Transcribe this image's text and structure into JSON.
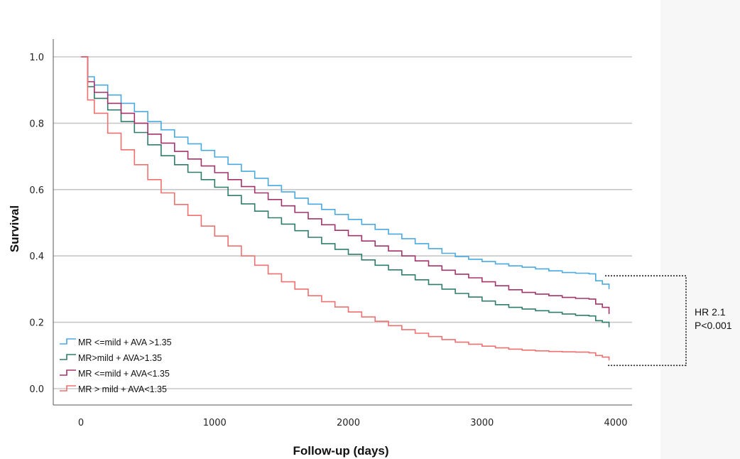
{
  "chart_data": {
    "type": "line",
    "step": true,
    "xlabel": "Follow-up (days)",
    "ylabel": "Survival",
    "xlim": [
      0,
      4000
    ],
    "ylim": [
      0,
      1
    ],
    "xticks": [
      0,
      1000,
      2000,
      3000,
      4000
    ],
    "yticks": [
      0.0,
      0.2,
      0.4,
      0.6,
      0.8,
      1.0
    ],
    "ytick_labels": [
      "0.0",
      "0.2",
      "0.4",
      "0.6",
      "0.8",
      "1.0"
    ],
    "grid": "horizontal",
    "legend_position": "bottom-left",
    "series": [
      {
        "name": "MR <=mild + AVA >1.35",
        "color": "#4aa9e0",
        "x": [
          0,
          50,
          100,
          200,
          300,
          400,
          500,
          600,
          700,
          800,
          900,
          1000,
          1100,
          1200,
          1300,
          1400,
          1500,
          1600,
          1700,
          1800,
          1900,
          2000,
          2100,
          2200,
          2300,
          2400,
          2500,
          2600,
          2700,
          2800,
          2900,
          3000,
          3100,
          3200,
          3300,
          3400,
          3500,
          3600,
          3700,
          3800,
          3850,
          3900,
          3950
        ],
        "y": [
          1.0,
          0.94,
          0.915,
          0.885,
          0.86,
          0.835,
          0.805,
          0.78,
          0.758,
          0.738,
          0.718,
          0.698,
          0.676,
          0.655,
          0.634,
          0.612,
          0.593,
          0.574,
          0.556,
          0.54,
          0.525,
          0.51,
          0.495,
          0.48,
          0.466,
          0.452,
          0.437,
          0.422,
          0.408,
          0.398,
          0.39,
          0.383,
          0.376,
          0.37,
          0.366,
          0.361,
          0.355,
          0.35,
          0.348,
          0.346,
          0.325,
          0.315,
          0.3
        ]
      },
      {
        "name": "MR>mild + AVA>1.35",
        "color": "#2e7d6c",
        "x": [
          0,
          50,
          100,
          200,
          300,
          400,
          500,
          600,
          700,
          800,
          900,
          1000,
          1100,
          1200,
          1300,
          1400,
          1500,
          1600,
          1700,
          1800,
          1900,
          2000,
          2100,
          2200,
          2300,
          2400,
          2500,
          2600,
          2700,
          2800,
          2900,
          3000,
          3100,
          3200,
          3300,
          3400,
          3500,
          3600,
          3700,
          3800,
          3850,
          3900,
          3950
        ],
        "y": [
          1.0,
          0.91,
          0.875,
          0.84,
          0.805,
          0.772,
          0.735,
          0.702,
          0.675,
          0.652,
          0.63,
          0.607,
          0.582,
          0.557,
          0.535,
          0.515,
          0.496,
          0.476,
          0.456,
          0.437,
          0.42,
          0.405,
          0.388,
          0.372,
          0.358,
          0.343,
          0.328,
          0.314,
          0.3,
          0.287,
          0.276,
          0.264,
          0.253,
          0.245,
          0.24,
          0.235,
          0.23,
          0.225,
          0.221,
          0.219,
          0.205,
          0.2,
          0.185
        ]
      },
      {
        "name": "MR <=mild + AVA<1.35",
        "color": "#a3336a",
        "x": [
          0,
          50,
          100,
          200,
          300,
          400,
          500,
          600,
          700,
          800,
          900,
          1000,
          1100,
          1200,
          1300,
          1400,
          1500,
          1600,
          1700,
          1800,
          1900,
          2000,
          2100,
          2200,
          2300,
          2400,
          2500,
          2600,
          2700,
          2800,
          2900,
          3000,
          3100,
          3200,
          3300,
          3400,
          3500,
          3600,
          3700,
          3800,
          3850,
          3900,
          3950
        ],
        "y": [
          1.0,
          0.925,
          0.893,
          0.86,
          0.83,
          0.8,
          0.767,
          0.74,
          0.715,
          0.692,
          0.671,
          0.651,
          0.63,
          0.609,
          0.59,
          0.57,
          0.551,
          0.531,
          0.512,
          0.494,
          0.477,
          0.461,
          0.445,
          0.43,
          0.415,
          0.4,
          0.385,
          0.37,
          0.357,
          0.345,
          0.334,
          0.322,
          0.31,
          0.298,
          0.29,
          0.285,
          0.28,
          0.275,
          0.272,
          0.27,
          0.255,
          0.245,
          0.225
        ]
      },
      {
        "name": "MR > mild + AVA<1.35",
        "color": "#f07070",
        "x": [
          0,
          50,
          100,
          200,
          300,
          400,
          500,
          600,
          700,
          800,
          900,
          1000,
          1100,
          1200,
          1300,
          1400,
          1500,
          1600,
          1700,
          1800,
          1900,
          2000,
          2100,
          2200,
          2300,
          2400,
          2500,
          2600,
          2700,
          2800,
          2900,
          3000,
          3100,
          3200,
          3300,
          3400,
          3500,
          3600,
          3700,
          3800,
          3850,
          3900,
          3950
        ],
        "y": [
          1.0,
          0.87,
          0.83,
          0.77,
          0.72,
          0.675,
          0.63,
          0.59,
          0.555,
          0.522,
          0.49,
          0.46,
          0.43,
          0.4,
          0.372,
          0.346,
          0.322,
          0.3,
          0.28,
          0.262,
          0.246,
          0.231,
          0.216,
          0.203,
          0.19,
          0.178,
          0.167,
          0.157,
          0.148,
          0.14,
          0.134,
          0.128,
          0.123,
          0.119,
          0.116,
          0.114,
          0.112,
          0.111,
          0.11,
          0.108,
          0.1,
          0.095,
          0.085
        ]
      }
    ],
    "annotation": {
      "lines": [
        "HR 2.1",
        "P<0.001"
      ],
      "bracket_from_y": 0.34,
      "bracket_to_y": 0.07
    }
  }
}
